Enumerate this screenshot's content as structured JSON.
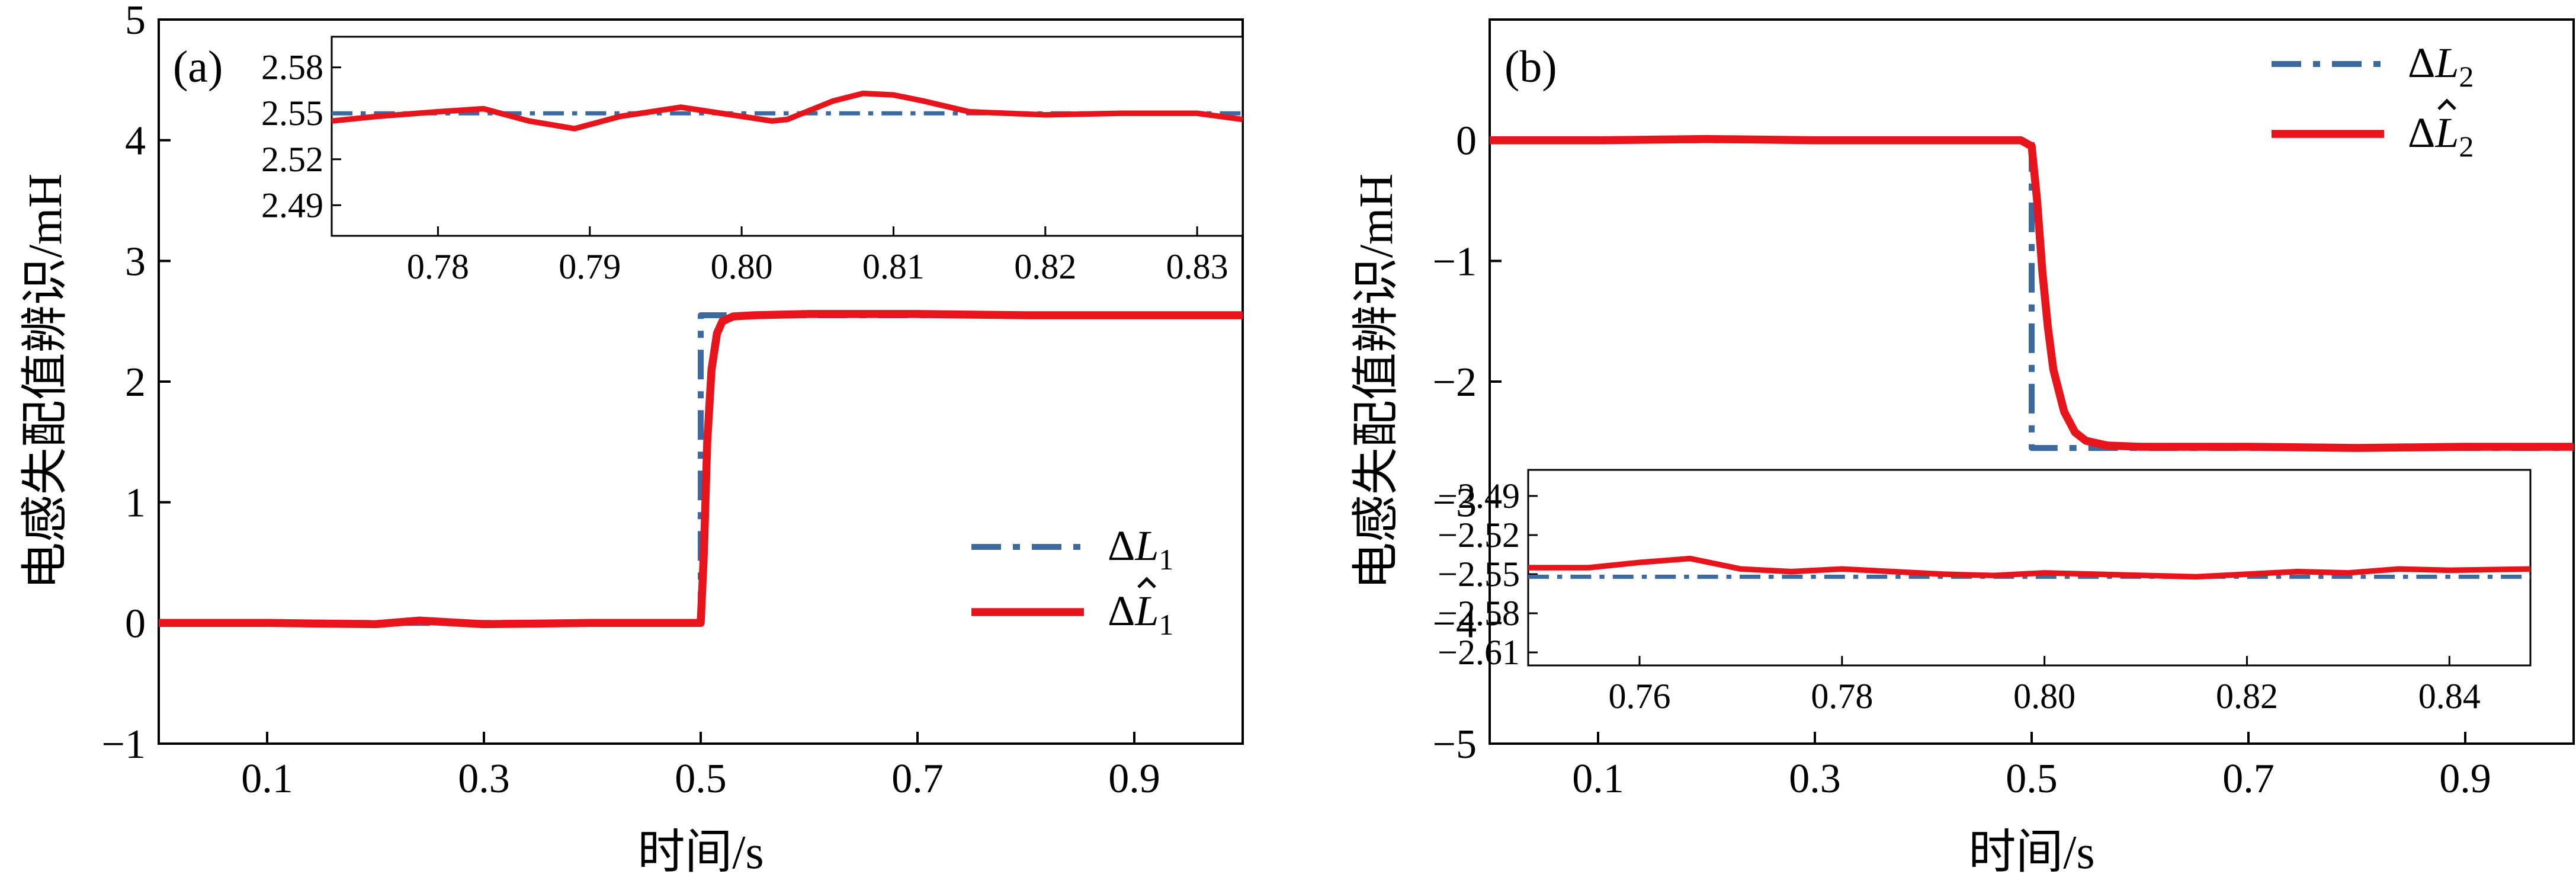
{
  "colors": {
    "reference": "#3a6aa0",
    "estimate": "#e8141b",
    "axes": "#000000"
  },
  "chart_data": [
    {
      "type": "line",
      "panel_label": "(a)",
      "xlabel": "时间/s",
      "ylabel": "电感失配值辨识/mH",
      "xlim": [
        0.0,
        1.0
      ],
      "ylim": [
        -1,
        5
      ],
      "xticks": [
        0.1,
        0.3,
        0.5,
        0.7,
        0.9
      ],
      "xtick_labels": [
        "0.1",
        "0.3",
        "0.5",
        "0.7",
        "0.9"
      ],
      "yticks": [
        -1,
        0,
        1,
        2,
        3,
        4,
        5
      ],
      "ytick_labels": [
        "−1",
        "0",
        "1",
        "2",
        "3",
        "4",
        "5"
      ],
      "legend": {
        "placement": "lower-right",
        "entries": [
          {
            "symbol": "Δ",
            "main": "L",
            "sub": "1",
            "hat": false
          },
          {
            "symbol": "Δ",
            "main": "L",
            "sub": "1",
            "hat": true
          }
        ]
      },
      "series": [
        {
          "role": "reference",
          "style": "dash-dot",
          "x": [
            0.0,
            0.5,
            0.5,
            0.501,
            0.501,
            1.0
          ],
          "y": [
            0.0,
            0.0,
            2.55,
            2.55,
            2.55,
            2.55
          ]
        },
        {
          "role": "estimate",
          "style": "solid",
          "x": [
            0.0,
            0.1,
            0.2,
            0.24,
            0.3,
            0.4,
            0.48,
            0.5,
            0.503,
            0.506,
            0.51,
            0.515,
            0.52,
            0.53,
            0.55,
            0.6,
            0.7,
            0.8,
            0.9,
            1.0
          ],
          "y": [
            0.0,
            0.0,
            -0.01,
            0.02,
            -0.01,
            0.0,
            0.0,
            0.0,
            0.6,
            1.5,
            2.1,
            2.4,
            2.5,
            2.54,
            2.55,
            2.56,
            2.56,
            2.55,
            2.55,
            2.55
          ]
        }
      ],
      "inset": {
        "xlim": [
          0.773,
          0.833
        ],
        "ylim": [
          2.47,
          2.6
        ],
        "xticks": [
          0.78,
          0.79,
          0.8,
          0.81,
          0.82,
          0.83
        ],
        "xtick_labels": [
          "0.78",
          "0.79",
          "0.80",
          "0.81",
          "0.82",
          "0.83"
        ],
        "yticks": [
          2.49,
          2.52,
          2.55,
          2.58
        ],
        "ytick_labels": [
          "2.49",
          "2.52",
          "2.55",
          "2.58"
        ],
        "series": [
          {
            "role": "reference",
            "style": "dash-dot",
            "x": [
              0.773,
              0.833
            ],
            "y": [
              2.55,
              2.55
            ]
          },
          {
            "role": "estimate",
            "style": "solid",
            "x": [
              0.773,
              0.776,
              0.78,
              0.783,
              0.786,
              0.789,
              0.792,
              0.796,
              0.8,
              0.802,
              0.803,
              0.806,
              0.808,
              0.81,
              0.812,
              0.815,
              0.82,
              0.825,
              0.83,
              0.833
            ],
            "y": [
              2.545,
              2.548,
              2.551,
              2.553,
              2.545,
              2.54,
              2.548,
              2.554,
              2.548,
              2.545,
              2.546,
              2.558,
              2.563,
              2.562,
              2.558,
              2.551,
              2.549,
              2.55,
              2.55,
              2.546
            ]
          }
        ]
      }
    },
    {
      "type": "line",
      "panel_label": "(b)",
      "xlabel": "时间/s",
      "ylabel": "电感失配值辨识/mH",
      "xlim": [
        0.0,
        1.0
      ],
      "ylim": [
        -5,
        1
      ],
      "xticks": [
        0.1,
        0.3,
        0.5,
        0.7,
        0.9
      ],
      "xtick_labels": [
        "0.1",
        "0.3",
        "0.5",
        "0.7",
        "0.9"
      ],
      "yticks": [
        -5,
        -4,
        -3,
        -2,
        -1,
        0
      ],
      "ytick_labels": [
        "−5",
        "−4",
        "−3",
        "−2",
        "−1",
        "0"
      ],
      "legend": {
        "placement": "upper-right",
        "entries": [
          {
            "symbol": "Δ",
            "main": "L",
            "sub": "2",
            "hat": false
          },
          {
            "symbol": "Δ",
            "main": "L",
            "sub": "2",
            "hat": true
          }
        ]
      },
      "series": [
        {
          "role": "reference",
          "style": "dash-dot",
          "x": [
            0.0,
            0.5,
            0.5,
            1.0
          ],
          "y": [
            0.0,
            0.0,
            -2.55,
            -2.55
          ]
        },
        {
          "role": "estimate",
          "style": "solid",
          "x": [
            0.0,
            0.1,
            0.2,
            0.3,
            0.4,
            0.49,
            0.5,
            0.505,
            0.51,
            0.515,
            0.52,
            0.53,
            0.54,
            0.55,
            0.57,
            0.6,
            0.7,
            0.8,
            0.9,
            1.0
          ],
          "y": [
            0.0,
            0.0,
            0.01,
            0.0,
            0.0,
            0.0,
            -0.05,
            -0.5,
            -1.1,
            -1.55,
            -1.9,
            -2.25,
            -2.42,
            -2.49,
            -2.53,
            -2.54,
            -2.54,
            -2.55,
            -2.54,
            -2.54
          ]
        }
      ],
      "inset": {
        "xlim": [
          0.749,
          0.848
        ],
        "ylim": [
          -2.62,
          -2.47
        ],
        "xticks": [
          0.76,
          0.78,
          0.8,
          0.82,
          0.84
        ],
        "xtick_labels": [
          "0.76",
          "0.78",
          "0.80",
          "0.82",
          "0.84"
        ],
        "yticks": [
          -2.61,
          -2.58,
          -2.55,
          -2.52,
          -2.49
        ],
        "ytick_labels": [
          "−2.61",
          "−2.58",
          "−2.55",
          "−2.52",
          "−2.49"
        ],
        "series": [
          {
            "role": "reference",
            "style": "dash-dot",
            "x": [
              0.749,
              0.848
            ],
            "y": [
              -2.552,
              -2.552
            ]
          },
          {
            "role": "estimate",
            "style": "solid",
            "x": [
              0.749,
              0.755,
              0.76,
              0.765,
              0.77,
              0.775,
              0.78,
              0.785,
              0.79,
              0.795,
              0.8,
              0.805,
              0.81,
              0.815,
              0.82,
              0.825,
              0.83,
              0.835,
              0.84,
              0.848
            ],
            "y": [
              -2.545,
              -2.545,
              -2.541,
              -2.538,
              -2.546,
              -2.548,
              -2.546,
              -2.548,
              -2.55,
              -2.551,
              -2.549,
              -2.55,
              -2.551,
              -2.552,
              -2.55,
              -2.548,
              -2.549,
              -2.546,
              -2.547,
              -2.546
            ]
          }
        ]
      }
    }
  ]
}
